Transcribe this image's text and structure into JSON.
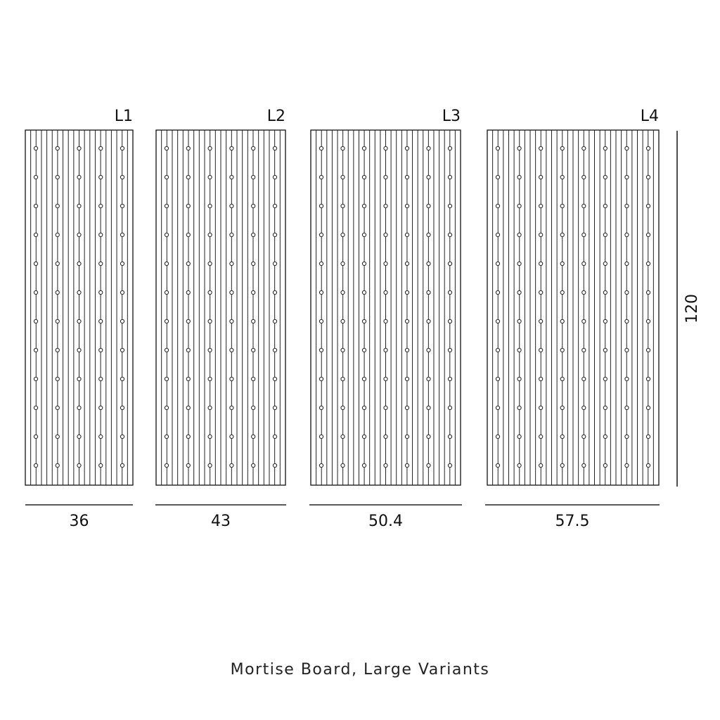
{
  "boards": [
    {
      "label": "L1",
      "width_label": "36"
    },
    {
      "label": "L2",
      "width_label": "43"
    },
    {
      "label": "L3",
      "width_label": "50.4"
    },
    {
      "label": "L4",
      "width_label": "57.5"
    }
  ],
  "height_label": "120",
  "caption": "Mortise Board, Large Variants",
  "colors": {
    "line": "#222222",
    "background": "#ffffff"
  }
}
